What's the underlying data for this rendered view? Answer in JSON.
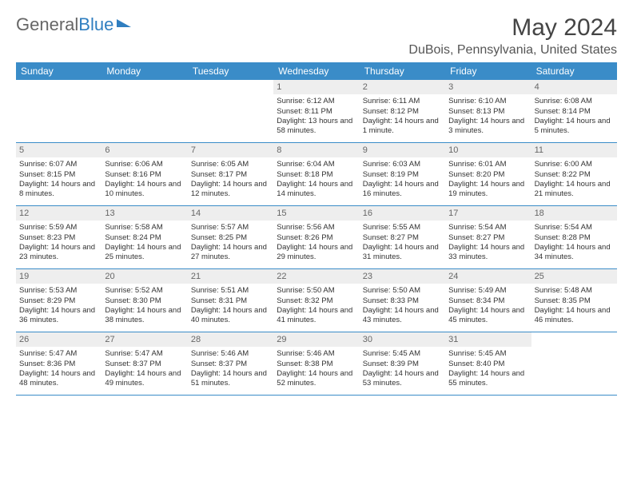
{
  "logo": {
    "text1": "General",
    "text2": "Blue"
  },
  "title": "May 2024",
  "location": "DuBois, Pennsylvania, United States",
  "colors": {
    "header_bg": "#3a8cc8",
    "header_text": "#ffffff",
    "daynum_bg": "#eeeeee",
    "daynum_text": "#666666",
    "border": "#3a8cc8",
    "logo_gray": "#666666",
    "logo_blue": "#2f7ec0"
  },
  "day_names": [
    "Sunday",
    "Monday",
    "Tuesday",
    "Wednesday",
    "Thursday",
    "Friday",
    "Saturday"
  ],
  "weeks": [
    [
      {
        "empty": true
      },
      {
        "empty": true
      },
      {
        "empty": true
      },
      {
        "day": "1",
        "sunrise": "Sunrise: 6:12 AM",
        "sunset": "Sunset: 8:11 PM",
        "daylight": "Daylight: 13 hours and 58 minutes."
      },
      {
        "day": "2",
        "sunrise": "Sunrise: 6:11 AM",
        "sunset": "Sunset: 8:12 PM",
        "daylight": "Daylight: 14 hours and 1 minute."
      },
      {
        "day": "3",
        "sunrise": "Sunrise: 6:10 AM",
        "sunset": "Sunset: 8:13 PM",
        "daylight": "Daylight: 14 hours and 3 minutes."
      },
      {
        "day": "4",
        "sunrise": "Sunrise: 6:08 AM",
        "sunset": "Sunset: 8:14 PM",
        "daylight": "Daylight: 14 hours and 5 minutes."
      }
    ],
    [
      {
        "day": "5",
        "sunrise": "Sunrise: 6:07 AM",
        "sunset": "Sunset: 8:15 PM",
        "daylight": "Daylight: 14 hours and 8 minutes."
      },
      {
        "day": "6",
        "sunrise": "Sunrise: 6:06 AM",
        "sunset": "Sunset: 8:16 PM",
        "daylight": "Daylight: 14 hours and 10 minutes."
      },
      {
        "day": "7",
        "sunrise": "Sunrise: 6:05 AM",
        "sunset": "Sunset: 8:17 PM",
        "daylight": "Daylight: 14 hours and 12 minutes."
      },
      {
        "day": "8",
        "sunrise": "Sunrise: 6:04 AM",
        "sunset": "Sunset: 8:18 PM",
        "daylight": "Daylight: 14 hours and 14 minutes."
      },
      {
        "day": "9",
        "sunrise": "Sunrise: 6:03 AM",
        "sunset": "Sunset: 8:19 PM",
        "daylight": "Daylight: 14 hours and 16 minutes."
      },
      {
        "day": "10",
        "sunrise": "Sunrise: 6:01 AM",
        "sunset": "Sunset: 8:20 PM",
        "daylight": "Daylight: 14 hours and 19 minutes."
      },
      {
        "day": "11",
        "sunrise": "Sunrise: 6:00 AM",
        "sunset": "Sunset: 8:22 PM",
        "daylight": "Daylight: 14 hours and 21 minutes."
      }
    ],
    [
      {
        "day": "12",
        "sunrise": "Sunrise: 5:59 AM",
        "sunset": "Sunset: 8:23 PM",
        "daylight": "Daylight: 14 hours and 23 minutes."
      },
      {
        "day": "13",
        "sunrise": "Sunrise: 5:58 AM",
        "sunset": "Sunset: 8:24 PM",
        "daylight": "Daylight: 14 hours and 25 minutes."
      },
      {
        "day": "14",
        "sunrise": "Sunrise: 5:57 AM",
        "sunset": "Sunset: 8:25 PM",
        "daylight": "Daylight: 14 hours and 27 minutes."
      },
      {
        "day": "15",
        "sunrise": "Sunrise: 5:56 AM",
        "sunset": "Sunset: 8:26 PM",
        "daylight": "Daylight: 14 hours and 29 minutes."
      },
      {
        "day": "16",
        "sunrise": "Sunrise: 5:55 AM",
        "sunset": "Sunset: 8:27 PM",
        "daylight": "Daylight: 14 hours and 31 minutes."
      },
      {
        "day": "17",
        "sunrise": "Sunrise: 5:54 AM",
        "sunset": "Sunset: 8:27 PM",
        "daylight": "Daylight: 14 hours and 33 minutes."
      },
      {
        "day": "18",
        "sunrise": "Sunrise: 5:54 AM",
        "sunset": "Sunset: 8:28 PM",
        "daylight": "Daylight: 14 hours and 34 minutes."
      }
    ],
    [
      {
        "day": "19",
        "sunrise": "Sunrise: 5:53 AM",
        "sunset": "Sunset: 8:29 PM",
        "daylight": "Daylight: 14 hours and 36 minutes."
      },
      {
        "day": "20",
        "sunrise": "Sunrise: 5:52 AM",
        "sunset": "Sunset: 8:30 PM",
        "daylight": "Daylight: 14 hours and 38 minutes."
      },
      {
        "day": "21",
        "sunrise": "Sunrise: 5:51 AM",
        "sunset": "Sunset: 8:31 PM",
        "daylight": "Daylight: 14 hours and 40 minutes."
      },
      {
        "day": "22",
        "sunrise": "Sunrise: 5:50 AM",
        "sunset": "Sunset: 8:32 PM",
        "daylight": "Daylight: 14 hours and 41 minutes."
      },
      {
        "day": "23",
        "sunrise": "Sunrise: 5:50 AM",
        "sunset": "Sunset: 8:33 PM",
        "daylight": "Daylight: 14 hours and 43 minutes."
      },
      {
        "day": "24",
        "sunrise": "Sunrise: 5:49 AM",
        "sunset": "Sunset: 8:34 PM",
        "daylight": "Daylight: 14 hours and 45 minutes."
      },
      {
        "day": "25",
        "sunrise": "Sunrise: 5:48 AM",
        "sunset": "Sunset: 8:35 PM",
        "daylight": "Daylight: 14 hours and 46 minutes."
      }
    ],
    [
      {
        "day": "26",
        "sunrise": "Sunrise: 5:47 AM",
        "sunset": "Sunset: 8:36 PM",
        "daylight": "Daylight: 14 hours and 48 minutes."
      },
      {
        "day": "27",
        "sunrise": "Sunrise: 5:47 AM",
        "sunset": "Sunset: 8:37 PM",
        "daylight": "Daylight: 14 hours and 49 minutes."
      },
      {
        "day": "28",
        "sunrise": "Sunrise: 5:46 AM",
        "sunset": "Sunset: 8:37 PM",
        "daylight": "Daylight: 14 hours and 51 minutes."
      },
      {
        "day": "29",
        "sunrise": "Sunrise: 5:46 AM",
        "sunset": "Sunset: 8:38 PM",
        "daylight": "Daylight: 14 hours and 52 minutes."
      },
      {
        "day": "30",
        "sunrise": "Sunrise: 5:45 AM",
        "sunset": "Sunset: 8:39 PM",
        "daylight": "Daylight: 14 hours and 53 minutes."
      },
      {
        "day": "31",
        "sunrise": "Sunrise: 5:45 AM",
        "sunset": "Sunset: 8:40 PM",
        "daylight": "Daylight: 14 hours and 55 minutes."
      },
      {
        "empty": true
      }
    ]
  ]
}
